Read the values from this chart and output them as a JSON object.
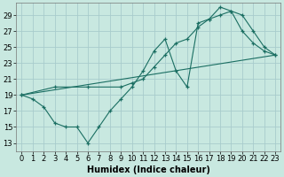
{
  "xlabel": "Humidex (Indice chaleur)",
  "bg_color": "#c8e8e0",
  "grid_color": "#a8cccc",
  "line_color": "#1a6e62",
  "xlim": [
    -0.5,
    23.5
  ],
  "ylim": [
    12.0,
    30.5
  ],
  "xticks": [
    0,
    1,
    2,
    3,
    4,
    5,
    6,
    7,
    8,
    9,
    10,
    11,
    12,
    13,
    14,
    15,
    16,
    17,
    18,
    19,
    20,
    21,
    22,
    23
  ],
  "yticks": [
    13,
    15,
    17,
    19,
    21,
    23,
    25,
    27,
    29
  ],
  "line1_x": [
    0,
    1,
    2,
    3,
    4,
    5,
    6,
    7,
    8,
    9,
    10,
    11,
    12,
    13,
    14,
    15,
    16,
    17,
    18,
    19,
    20,
    21,
    22,
    23
  ],
  "line1_y": [
    19,
    18.5,
    17.5,
    15.5,
    15.0,
    15.0,
    13.0,
    15.0,
    17.0,
    18.5,
    20.0,
    22.0,
    24.5,
    26.0,
    22.0,
    20.0,
    28.0,
    28.5,
    30.0,
    29.5,
    27.0,
    25.5,
    24.5,
    24.0
  ],
  "line2_x": [
    0,
    3,
    6,
    9,
    10,
    11,
    12,
    13,
    14,
    15,
    16,
    17,
    18,
    19,
    20,
    21,
    22,
    23
  ],
  "line2_y": [
    19,
    20.0,
    20.0,
    20.0,
    20.5,
    21.0,
    22.5,
    24.0,
    25.5,
    26.0,
    27.5,
    28.5,
    29.0,
    29.5,
    29.0,
    27.0,
    25.0,
    24.0
  ],
  "line3_x": [
    0,
    23
  ],
  "line3_y": [
    19,
    24.0
  ],
  "fontsize_label": 7,
  "fontsize_tick": 6
}
